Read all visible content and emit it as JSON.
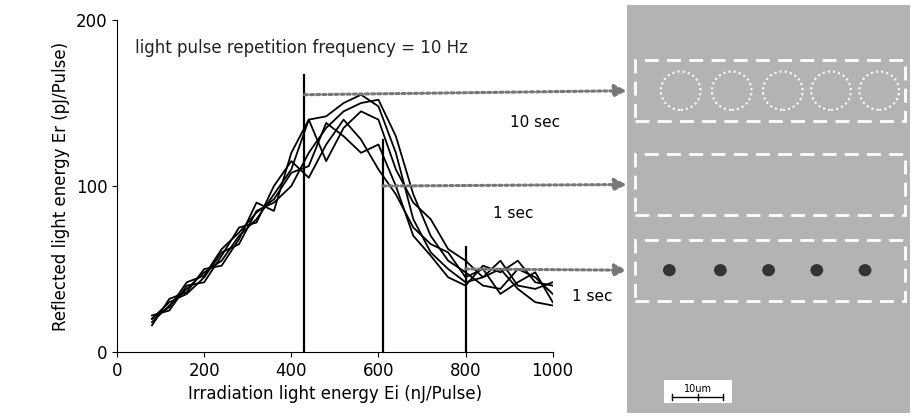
{
  "chart_data": {
    "type": "line",
    "annotation": "light pulse repetition frequency = 10 Hz",
    "x_label": "Irradiation light energy Ei (nJ/Pulse)",
    "y_label": "Reflected light energy Er (pJ/Pulse)",
    "x": [
      80,
      120,
      160,
      200,
      240,
      280,
      320,
      360,
      400,
      440,
      480,
      520,
      560,
      600,
      640,
      680,
      720,
      760,
      800,
      840,
      880,
      920,
      960,
      1000
    ],
    "series": [
      {
        "color": "#000000",
        "values": [
          18,
          28,
          38,
          48,
          55,
          70,
          80,
          95,
          110,
          140,
          142,
          150,
          155,
          148,
          120,
          80,
          60,
          50,
          42,
          45,
          55,
          40,
          38,
          42
        ]
      },
      {
        "color": "#000000",
        "values": [
          20,
          30,
          35,
          45,
          60,
          65,
          85,
          90,
          100,
          120,
          135,
          145,
          150,
          152,
          130,
          95,
          70,
          55,
          48,
          40,
          38,
          50,
          45,
          35
        ]
      },
      {
        "color": "#000000",
        "values": [
          22,
          25,
          40,
          42,
          58,
          75,
          78,
          100,
          115,
          105,
          125,
          140,
          128,
          110,
          95,
          75,
          65,
          60,
          45,
          50,
          35,
          42,
          48,
          30
        ]
      },
      {
        "color": "#000000",
        "values": [
          16,
          32,
          36,
          50,
          52,
          68,
          90,
          85,
          120,
          140,
          115,
          135,
          145,
          140,
          110,
          90,
          80,
          62,
          55,
          45,
          50,
          38,
          30,
          28
        ]
      },
      {
        "color": "#000000",
        "values": [
          20,
          27,
          42,
          46,
          62,
          72,
          84,
          92,
          108,
          112,
          138,
          130,
          120,
          125,
          100,
          70,
          58,
          45,
          40,
          52,
          48,
          55,
          42,
          40
        ]
      }
    ],
    "markers": [
      {
        "x": 430,
        "top": 167,
        "arrow_y": 155,
        "label": "10 sec"
      },
      {
        "x": 610,
        "top": 128,
        "arrow_y": 100,
        "label": "1 sec"
      },
      {
        "x": 800,
        "top": 63,
        "arrow_y": 50,
        "label": "1 sec"
      }
    ],
    "xlim": [
      0,
      1000
    ],
    "xticks": [
      0,
      200,
      400,
      600,
      800,
      1000
    ],
    "ylim": [
      0,
      200
    ],
    "yticks": [
      0,
      100,
      200
    ],
    "grid": false
  },
  "micrograph": {
    "scale_bar": "10um",
    "rows": [
      {
        "mark": "circle",
        "count": 5
      },
      {
        "mark": "none",
        "count": 0
      },
      {
        "mark": "dot",
        "count": 5
      }
    ]
  }
}
